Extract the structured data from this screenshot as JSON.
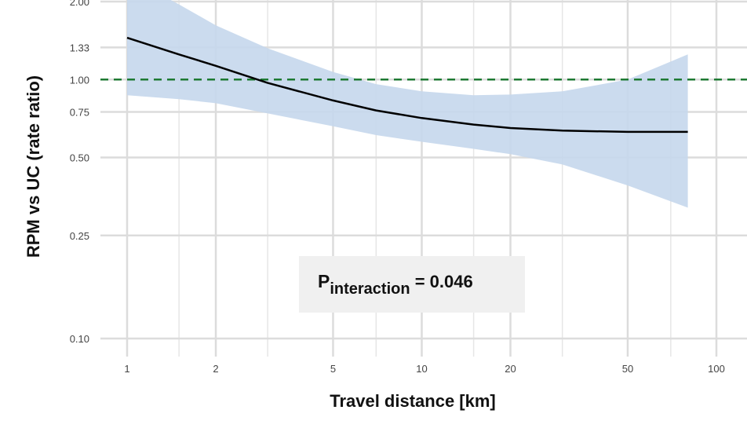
{
  "chart_data": {
    "type": "line",
    "xlabel": "Travel distance [km]",
    "ylabel": "RPM vs UC (rate ratio)",
    "x_scale": "log",
    "y_scale": "log",
    "xlim": [
      0.8,
      135
    ],
    "ylim": [
      0.085,
      2.0
    ],
    "x_ticks": [
      1,
      2,
      5,
      10,
      20,
      50,
      100
    ],
    "x_tick_labels": [
      "1",
      "2",
      "5",
      "10",
      "20",
      "50",
      "100"
    ],
    "y_ticks": [
      0.1,
      0.25,
      0.5,
      0.75,
      1.0,
      1.33,
      2.0
    ],
    "y_tick_labels": [
      "0.10",
      "0.25",
      "0.50",
      "0.75",
      "1.00",
      "1.33",
      "2.00"
    ],
    "grid": true,
    "series": [
      {
        "role": "estimate",
        "x": [
          1,
          1.5,
          2,
          3,
          5,
          7,
          10,
          15,
          20,
          30,
          50,
          80
        ],
        "y": [
          1.45,
          1.25,
          1.13,
          0.97,
          0.83,
          0.76,
          0.71,
          0.67,
          0.65,
          0.635,
          0.628,
          0.628
        ],
        "color": "#000000"
      },
      {
        "role": "confidence-band",
        "x": [
          1,
          1.5,
          2,
          3,
          5,
          7,
          10,
          15,
          20,
          30,
          50,
          80
        ],
        "lower": [
          0.87,
          0.84,
          0.81,
          0.74,
          0.66,
          0.61,
          0.575,
          0.54,
          0.515,
          0.47,
          0.39,
          0.32
        ],
        "upper": [
          2.5,
          1.95,
          1.62,
          1.32,
          1.07,
          0.96,
          0.9,
          0.87,
          0.875,
          0.9,
          1.0,
          1.25
        ],
        "color": "#c5d7ec"
      }
    ],
    "reference_line": {
      "y": 1.0,
      "color": "#1e7a33",
      "style": "dashed"
    },
    "annotation": {
      "main": "P",
      "subscript": "interaction",
      "suffix": " = 0.046"
    }
  }
}
